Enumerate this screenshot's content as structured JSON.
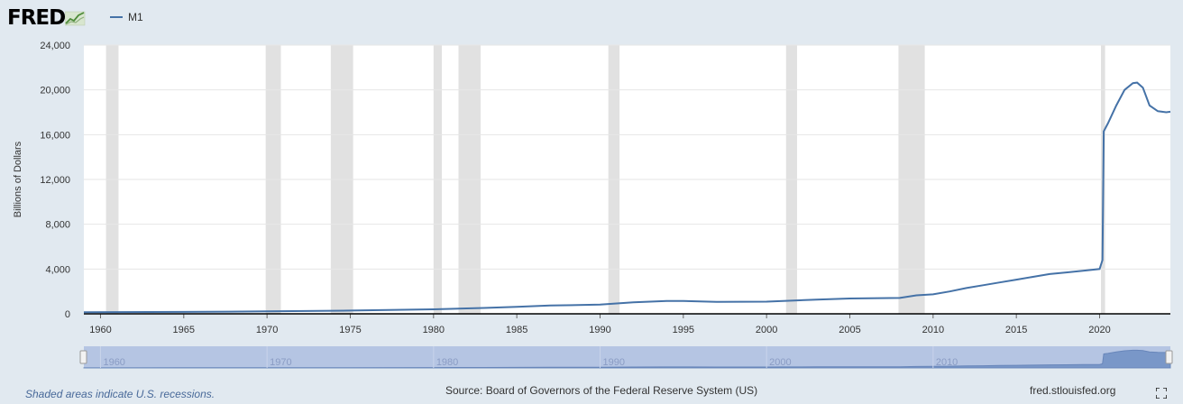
{
  "header": {
    "logo_text": "FRED",
    "legend_series": "M1"
  },
  "footer": {
    "recession_note": "Shaded areas indicate U.S. recessions.",
    "source": "Source: Board of Governors of the Federal Reserve System (US)",
    "site": "fred.stlouisfed.org"
  },
  "colors": {
    "background": "#e1e9f0",
    "plot_background": "#ffffff",
    "series_line": "#4572a7",
    "recession_band": "#e1e1e1",
    "navigator_fill": "#a6b8df"
  },
  "icons": {
    "logo_graph": "fred-graph-icon",
    "fullscreen": "fullscreen-icon"
  },
  "chart_data": {
    "type": "line",
    "title": "",
    "xlabel": "",
    "ylabel": "Billions of Dollars",
    "xlim": [
      1959.0,
      2024.25
    ],
    "ylim": [
      0,
      24000
    ],
    "yticks": [
      0,
      4000,
      8000,
      12000,
      16000,
      20000,
      24000
    ],
    "ytick_labels": [
      "0",
      "4,000",
      "8,000",
      "12,000",
      "16,000",
      "20,000",
      "24,000"
    ],
    "xticks": [
      1960,
      1965,
      1970,
      1975,
      1980,
      1985,
      1990,
      1995,
      2000,
      2005,
      2010,
      2015,
      2020
    ],
    "xtick_labels": [
      "1960",
      "1965",
      "1970",
      "1975",
      "1980",
      "1985",
      "1990",
      "1995",
      "2000",
      "2005",
      "2010",
      "2015",
      "2020"
    ],
    "grid": true,
    "recessions": [
      [
        1960.33,
        1961.08
      ],
      [
        1969.92,
        1970.83
      ],
      [
        1973.83,
        1975.17
      ],
      [
        1980.0,
        1980.5
      ],
      [
        1981.5,
        1982.83
      ],
      [
        1990.5,
        1991.17
      ],
      [
        2001.17,
        2001.83
      ],
      [
        2007.92,
        2009.5
      ],
      [
        2020.08,
        2020.33
      ]
    ],
    "series": [
      {
        "name": "M1",
        "x": [
          1959.0,
          1965.0,
          1970.0,
          1975.0,
          1980.0,
          1983.0,
          1985.0,
          1987.0,
          1990.0,
          1992.0,
          1994.0,
          1995.0,
          1997.0,
          2000.0,
          2001.0,
          2003.0,
          2005.0,
          2008.0,
          2009.0,
          2010.0,
          2011.0,
          2012.0,
          2013.0,
          2014.0,
          2015.0,
          2016.0,
          2017.0,
          2018.0,
          2019.0,
          2020.0,
          2020.17,
          2020.25,
          2020.5,
          2021.0,
          2021.5,
          2022.0,
          2022.25,
          2022.6,
          2023.0,
          2023.5,
          2024.0,
          2024.25
        ],
        "y": [
          140,
          170,
          215,
          290,
          400,
          520,
          620,
          740,
          820,
          1020,
          1150,
          1150,
          1070,
          1090,
          1150,
          1270,
          1370,
          1420,
          1650,
          1740,
          2000,
          2300,
          2550,
          2800,
          3050,
          3300,
          3550,
          3700,
          3850,
          4000,
          4800,
          16300,
          17000,
          18600,
          20000,
          20600,
          20650,
          20200,
          18600,
          18100,
          18000,
          18050
        ]
      }
    ],
    "navigator_labels": [
      "1960",
      "1970",
      "1980",
      "1990",
      "2000",
      "2010"
    ]
  }
}
